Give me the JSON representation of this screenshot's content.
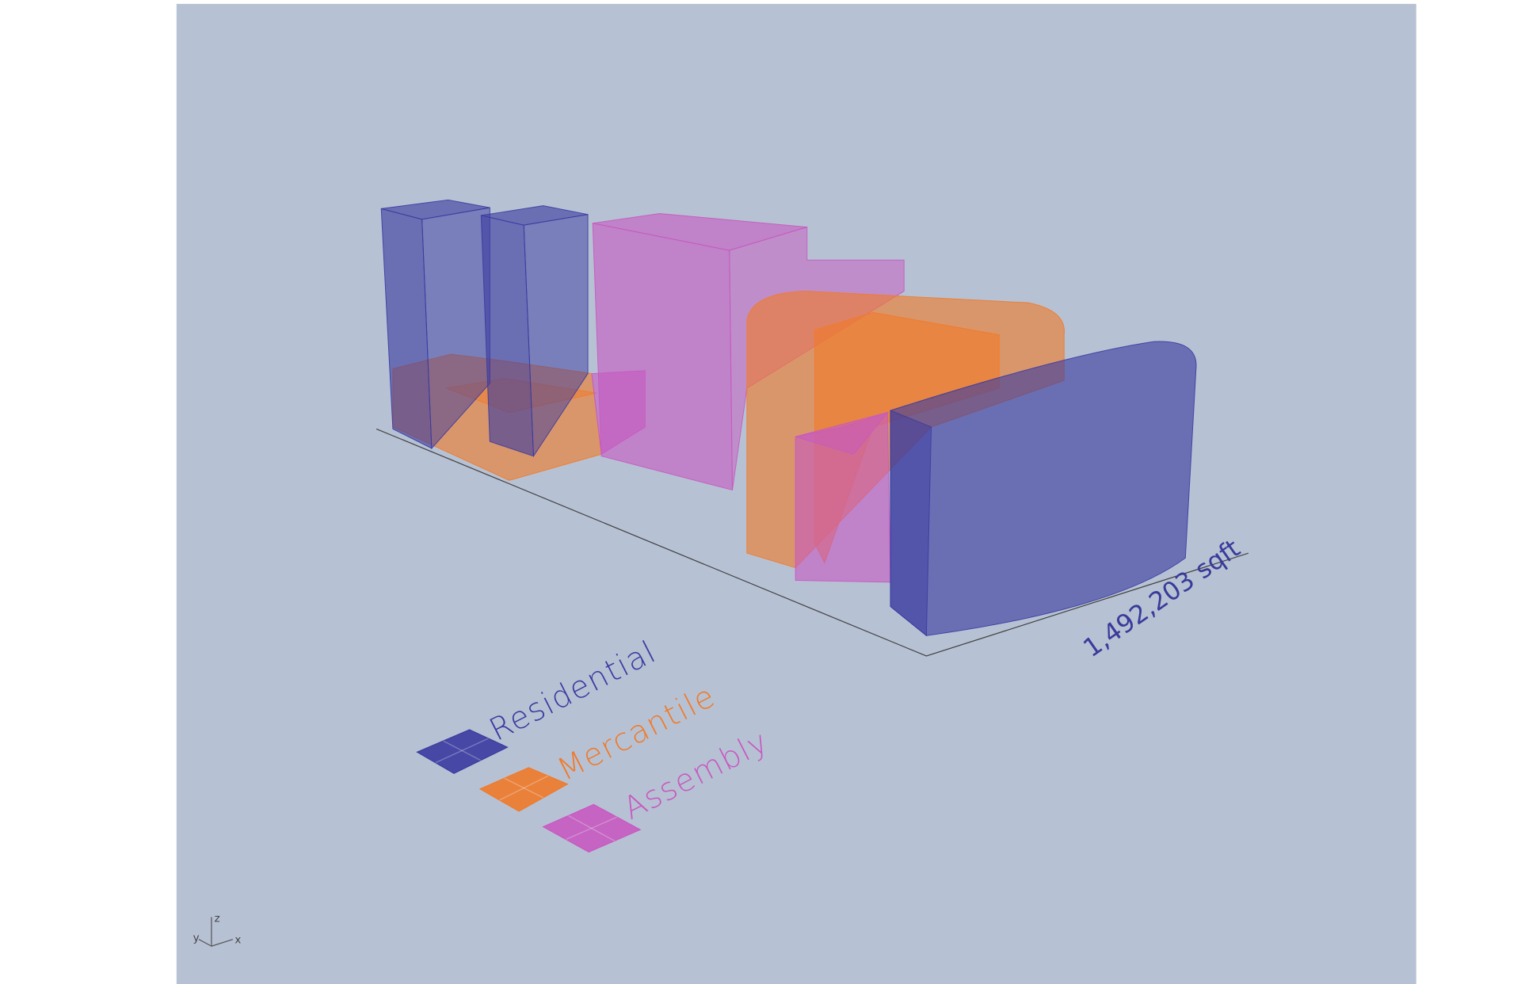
{
  "legend": [
    {
      "label": "Residential",
      "color": "#3b3ba0"
    },
    {
      "label": "Mercantile",
      "color": "#f07a2a"
    },
    {
      "label": "Assembly",
      "color": "#c75ac0"
    }
  ],
  "area_label": "1,492,203 sqft",
  "axes": {
    "z": "z",
    "y": "y",
    "x": "x"
  }
}
